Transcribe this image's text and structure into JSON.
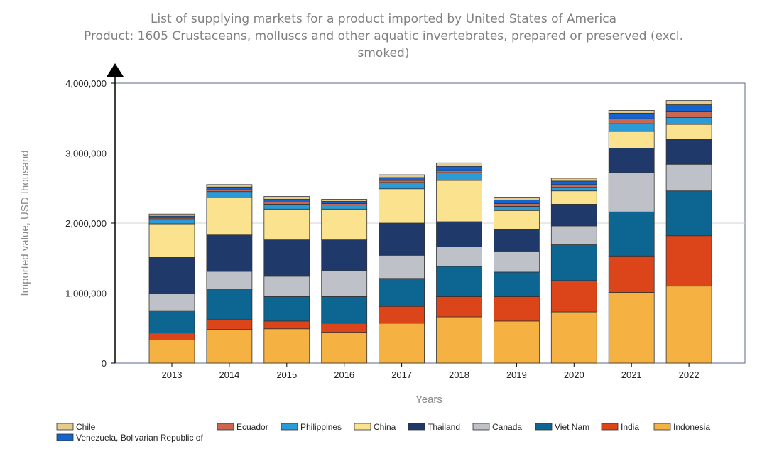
{
  "chart_data": {
    "type": "bar",
    "stacked": true,
    "title": [
      "List of supplying markets for a product imported by United States of America",
      "Product: 1605 Crustaceans, molluscs and other aquatic invertebrates, prepared or preserved (excl.",
      "smoked)"
    ],
    "xlabel": "Years",
    "ylabel": "Imported value, USD thousand",
    "ylim": [
      0,
      4000000
    ],
    "yticks": [
      0,
      1000000,
      2000000,
      3000000,
      4000000
    ],
    "ytick_labels": [
      "0",
      "1,000,000",
      "2,000,000",
      "3,000,000",
      "4,000,000"
    ],
    "categories": [
      "2013",
      "2014",
      "2015",
      "2016",
      "2017",
      "2018",
      "2019",
      "2020",
      "2021",
      "2022"
    ],
    "series": [
      {
        "name": "Indonesia",
        "color": "#F6B143",
        "values": [
          330000,
          480000,
          490000,
          440000,
          570000,
          660000,
          600000,
          730000,
          1010000,
          1100000
        ]
      },
      {
        "name": "India",
        "color": "#DC4419",
        "values": [
          100000,
          140000,
          110000,
          130000,
          240000,
          290000,
          350000,
          450000,
          520000,
          720000
        ]
      },
      {
        "name": "Viet Nam",
        "color": "#0D6691",
        "values": [
          320000,
          430000,
          350000,
          380000,
          400000,
          430000,
          350000,
          510000,
          630000,
          640000
        ]
      },
      {
        "name": "Canada",
        "color": "#BEC2C8",
        "values": [
          240000,
          260000,
          290000,
          370000,
          330000,
          280000,
          300000,
          270000,
          560000,
          380000
        ]
      },
      {
        "name": "Thailand",
        "color": "#1F3A6A",
        "values": [
          520000,
          520000,
          520000,
          440000,
          460000,
          360000,
          310000,
          310000,
          350000,
          360000
        ]
      },
      {
        "name": "China",
        "color": "#FAE28E",
        "values": [
          480000,
          530000,
          440000,
          440000,
          490000,
          590000,
          270000,
          190000,
          240000,
          210000
        ]
      },
      {
        "name": "Philippines",
        "color": "#2A9BD7",
        "values": [
          60000,
          90000,
          70000,
          60000,
          90000,
          110000,
          60000,
          50000,
          110000,
          100000
        ]
      },
      {
        "name": "Ecuador",
        "color": "#C9684E",
        "values": [
          20000,
          25000,
          30000,
          20000,
          30000,
          30000,
          40000,
          40000,
          70000,
          90000
        ]
      },
      {
        "name": "Venezuela, Bolivarian Republic of",
        "color": "#1463CF",
        "values": [
          30000,
          40000,
          40000,
          30000,
          40000,
          60000,
          50000,
          50000,
          80000,
          90000
        ]
      },
      {
        "name": "Chile",
        "color": "#E6CC8C",
        "values": [
          30000,
          35000,
          40000,
          30000,
          40000,
          50000,
          40000,
          40000,
          40000,
          60000
        ]
      }
    ],
    "legend": {
      "position": "bottom",
      "order": [
        "Chile",
        "Ecuador",
        "Philippines",
        "China",
        "Thailand",
        "Canada",
        "Viet Nam",
        "India",
        "Indonesia",
        "Venezuela, Bolivarian Republic of"
      ]
    }
  }
}
